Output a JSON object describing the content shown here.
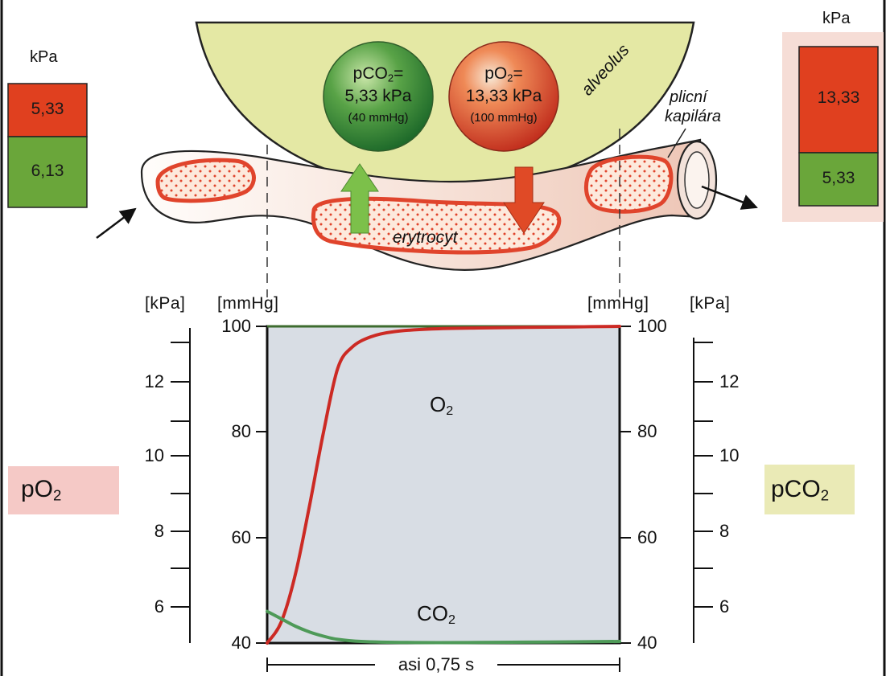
{
  "left_box": {
    "unit": "kPa",
    "top_value": "5,33",
    "bottom_value": "6,13",
    "top_color": "#e0401f",
    "bottom_color": "#6aa63a"
  },
  "right_box": {
    "unit": "kPa",
    "top_value": "13,33",
    "bottom_value": "5,33",
    "top_color": "#e0401f",
    "bottom_color": "#6aa63a"
  },
  "alveolus": {
    "label": "alveolus",
    "fill_color": "#e4e8a4",
    "co2_bubble": {
      "line1": "pCO",
      "sub": "2",
      "eq": "=",
      "line2": "5,33 kPa",
      "line3": "(40 mmHg)"
    },
    "o2_bubble": {
      "line1": "pO",
      "sub": "2",
      "eq": "=",
      "line2": "13,33 kPa",
      "line3": "(100 mmHg)"
    }
  },
  "capillary": {
    "label_line1": "plicní",
    "label_line2": "kapilára",
    "rbc_label": "erytrocyt"
  },
  "colors": {
    "o2_curve": "#cc2a24",
    "co2_curve": "#4e9a58",
    "plot_bg": "#d8dde4",
    "po2_badge": "#f5c9c6",
    "pco2_badge": "#eaeab6"
  },
  "side_labels": {
    "left": {
      "text": "pO",
      "sub": "2"
    },
    "right": {
      "text": "pCO",
      "sub": "2"
    }
  },
  "chart_data": {
    "type": "line",
    "x_span_label": "asi 0,75 s",
    "xlim": [
      0,
      0.75
    ],
    "ylim": [
      40,
      100
    ],
    "axes": {
      "left_outer_unit": "[kPa]",
      "left_inner_unit": "[mmHg]",
      "right_inner_unit": "[mmHg]",
      "right_outer_unit": "[kPa]",
      "mmhg_ticks": [
        "100",
        "80",
        "60",
        "40"
      ],
      "kpa_ticks": [
        "12",
        "10",
        "8",
        "6"
      ]
    },
    "series": [
      {
        "name": "O",
        "name_sub": "2",
        "x": [
          0,
          0.03,
          0.06,
          0.09,
          0.12,
          0.15,
          0.18,
          0.22,
          0.27,
          0.35,
          0.45,
          0.55,
          0.65,
          0.75
        ],
        "y": [
          40,
          44,
          53,
          66,
          80,
          92,
          96,
          98,
          99,
          99.5,
          99.7,
          99.8,
          99.9,
          100
        ]
      },
      {
        "name": "CO",
        "name_sub": "2",
        "x": [
          0,
          0.03,
          0.06,
          0.09,
          0.12,
          0.15,
          0.2,
          0.3,
          0.45,
          0.6,
          0.75
        ],
        "y": [
          46,
          44.6,
          43.2,
          42.1,
          41.3,
          40.7,
          40.3,
          40.1,
          40.1,
          40.2,
          40.3
        ]
      }
    ]
  }
}
